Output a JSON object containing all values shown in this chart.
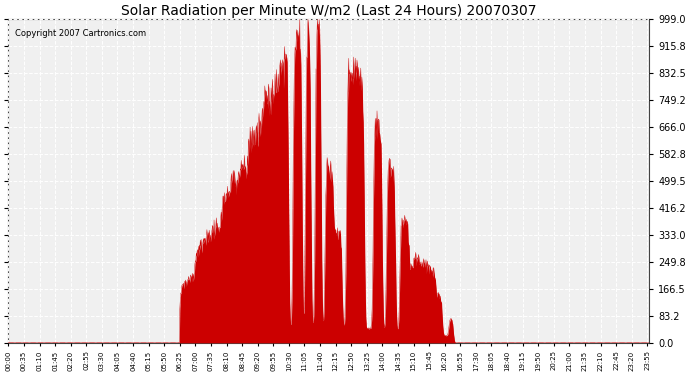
{
  "title": "Solar Radiation per Minute W/m2 (Last 24 Hours) 20070307",
  "copyright_text": "Copyright 2007 Cartronics.com",
  "fill_color": "#cc0000",
  "line_color": "#cc0000",
  "background_color": "#ffffff",
  "grid_color": "#bbbbbb",
  "dashed_line_color": "#cc0000",
  "ylim": [
    0.0,
    999.0
  ],
  "yticks": [
    0.0,
    83.2,
    166.5,
    249.8,
    333.0,
    416.2,
    499.5,
    582.8,
    666.0,
    749.2,
    832.5,
    915.8,
    999.0
  ],
  "total_minutes": 1440,
  "tick_step_minutes": 35,
  "sunrise_minute": 385,
  "sunset_minute": 1025,
  "peak_minute": 685
}
